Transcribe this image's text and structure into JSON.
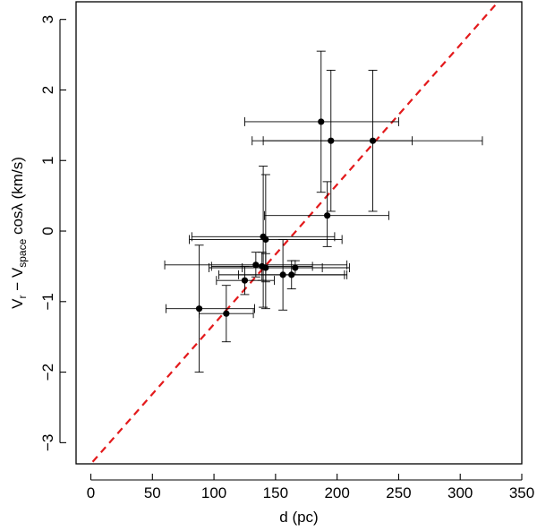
{
  "chart_data": {
    "type": "scatter",
    "title": "",
    "xlabel": "d (pc)",
    "ylabel_parts": {
      "v1": "V",
      "sub1": "r",
      "minus": " − V",
      "sub2": "space",
      "rest": " cosλ (km/s)"
    },
    "xlim": [
      -12,
      350
    ],
    "ylim": [
      -3.3,
      3.25
    ],
    "x_ticks": [
      0,
      50,
      100,
      150,
      200,
      250,
      300,
      350
    ],
    "x_tick_labels": [
      "0",
      "50",
      "100",
      "150",
      "200",
      "250",
      "300",
      "350"
    ],
    "y_ticks": [
      -3,
      -2,
      -1,
      0,
      1,
      2,
      3
    ],
    "y_tick_labels": [
      "−3",
      "−2",
      "−1",
      "0",
      "1",
      "2",
      "3"
    ],
    "grid": false,
    "points": [
      {
        "x": 187,
        "y": 1.55,
        "xlo": 125,
        "xhi": 250,
        "ylo": 0.55,
        "yhi": 2.55
      },
      {
        "x": 195,
        "y": 1.28,
        "xlo": 131,
        "xhi": 261,
        "ylo": 0.28,
        "yhi": 2.28
      },
      {
        "x": 229,
        "y": 1.28,
        "xlo": 140,
        "xhi": 318,
        "ylo": 0.28,
        "yhi": 2.28
      },
      {
        "x": 192,
        "y": 0.22,
        "xlo": 141,
        "xhi": 242,
        "ylo": -0.22,
        "yhi": 0.7
      },
      {
        "x": 140,
        "y": -0.08,
        "xlo": 82,
        "xhi": 198,
        "ylo": -1.08,
        "yhi": 0.92
      },
      {
        "x": 142,
        "y": -0.12,
        "xlo": 80,
        "xhi": 204,
        "ylo": -1.1,
        "yhi": 0.8
      },
      {
        "x": 134,
        "y": -0.48,
        "xlo": 60,
        "xhi": 208,
        "ylo": -0.65,
        "yhi": -0.3
      },
      {
        "x": 139,
        "y": -0.5,
        "xlo": 98,
        "xhi": 180,
        "ylo": -0.7,
        "yhi": -0.3
      },
      {
        "x": 142,
        "y": -0.52,
        "xlo": 96,
        "xhi": 188,
        "ylo": -0.72,
        "yhi": -0.32
      },
      {
        "x": 166,
        "y": -0.52,
        "xlo": 123,
        "xhi": 210,
        "ylo": -0.62,
        "yhi": -0.42
      },
      {
        "x": 156,
        "y": -0.62,
        "xlo": 104,
        "xhi": 208,
        "ylo": -1.12,
        "yhi": -0.12
      },
      {
        "x": 163,
        "y": -0.62,
        "xlo": 120,
        "xhi": 206,
        "ylo": -0.82,
        "yhi": -0.42
      },
      {
        "x": 125,
        "y": -0.7,
        "xlo": 102,
        "xhi": 149,
        "ylo": -0.9,
        "yhi": -0.5
      },
      {
        "x": 88,
        "y": -1.1,
        "xlo": 61,
        "xhi": 133,
        "ylo": -2.0,
        "yhi": -0.2
      },
      {
        "x": 110,
        "y": -1.17,
        "xlo": 88,
        "xhi": 132,
        "ylo": -1.57,
        "yhi": -0.77
      }
    ],
    "fit_line": {
      "slope": 0.0198,
      "intercept": -3.3,
      "style": "dashed",
      "color": "#e31a1c"
    }
  }
}
